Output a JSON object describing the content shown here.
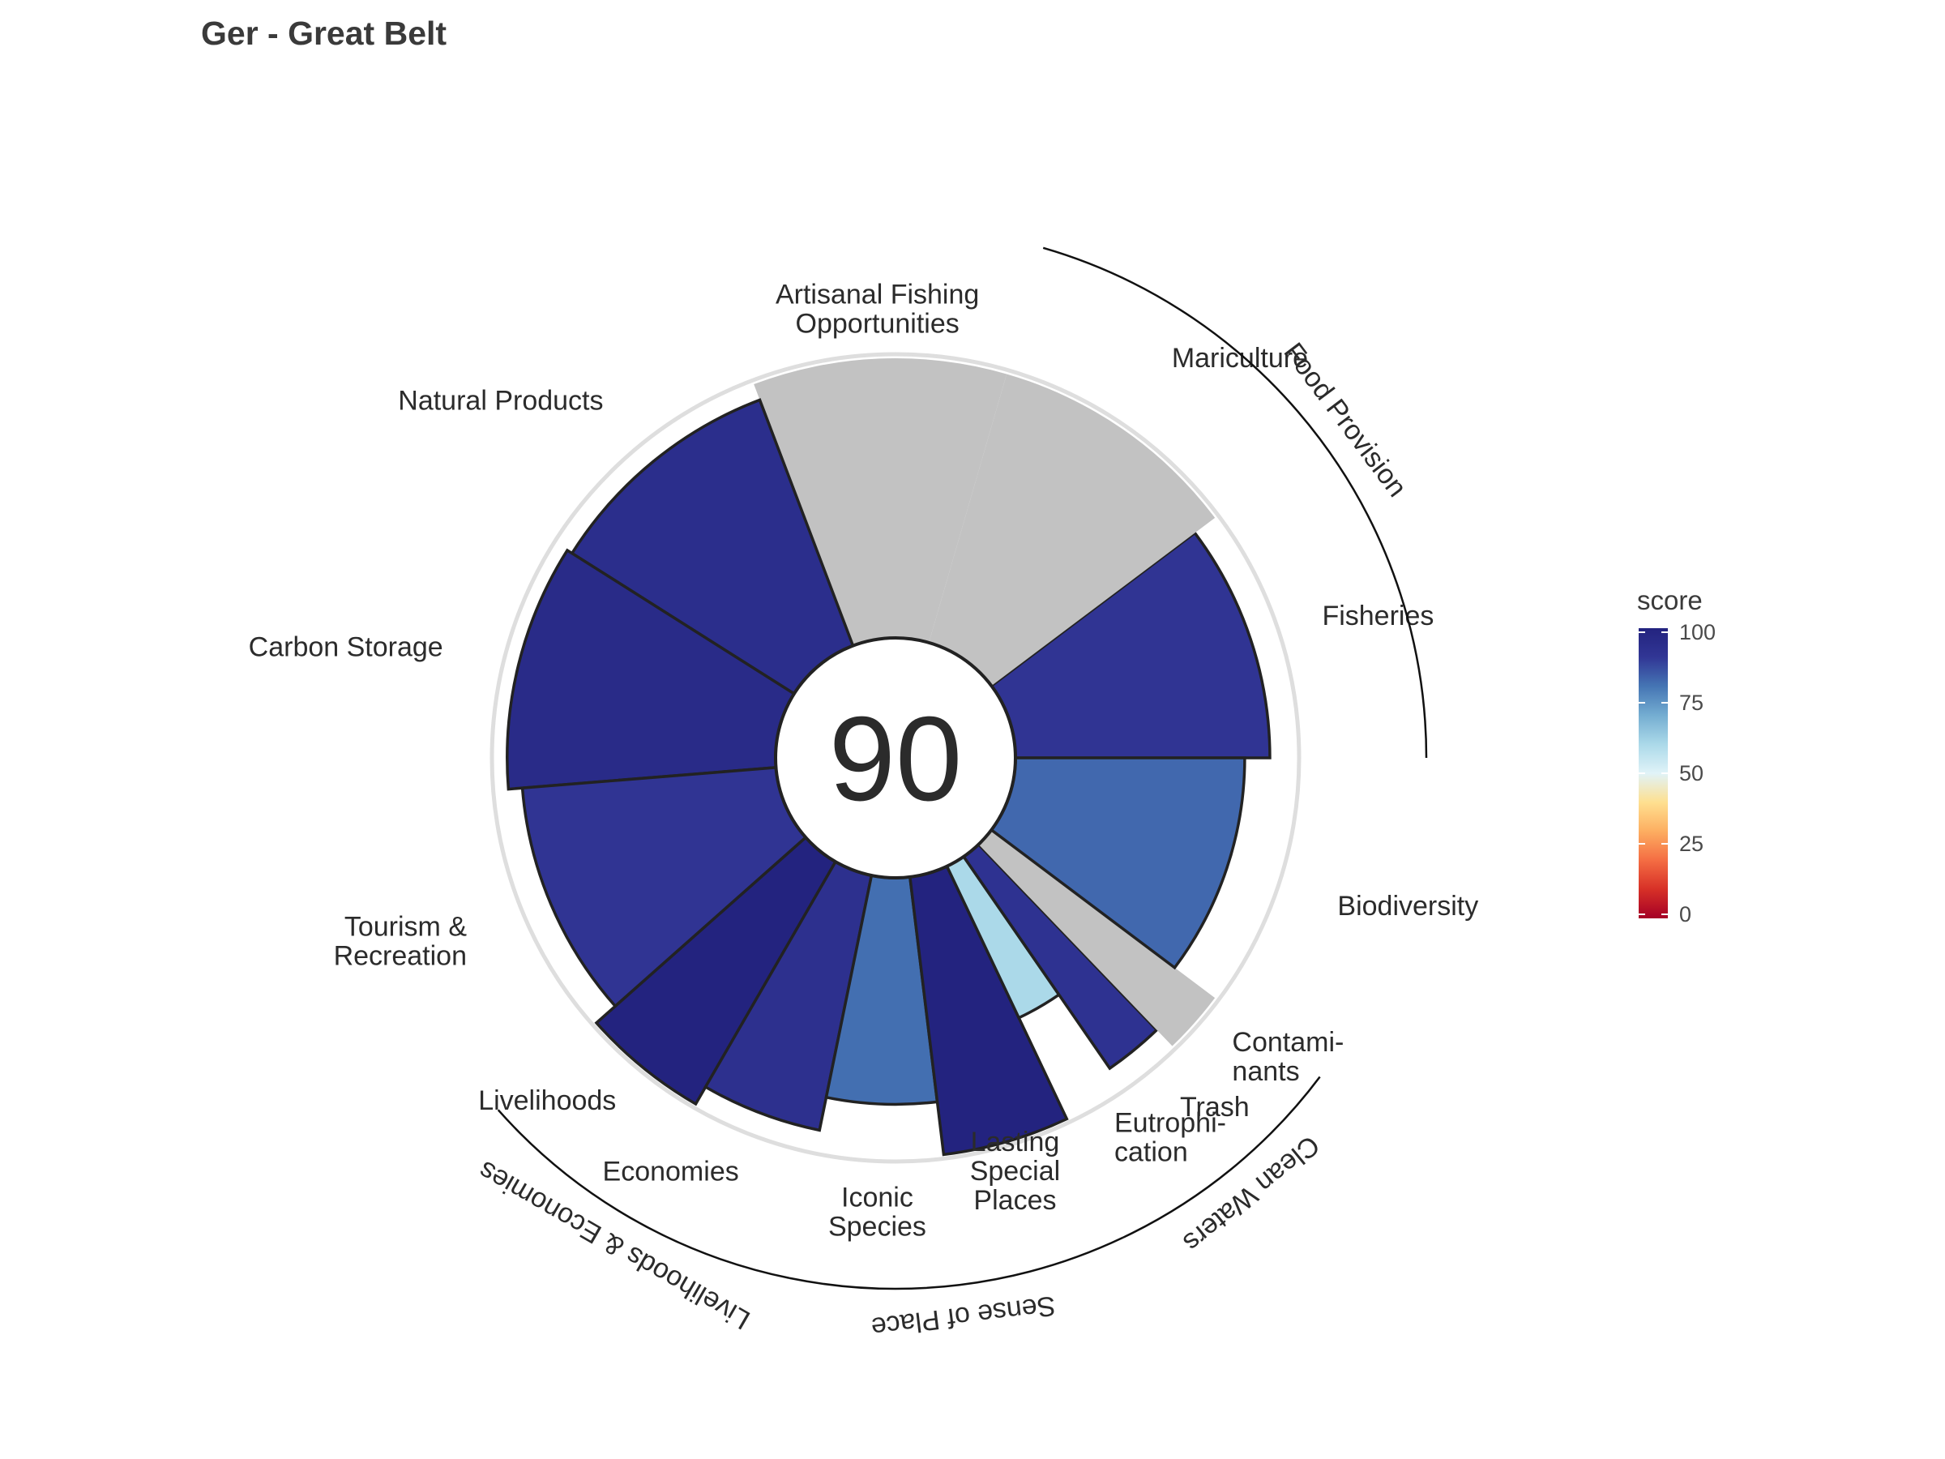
{
  "chart_data": {
    "type": "pie",
    "subtype": "flower-plot",
    "title": "Ger - Great Belt",
    "center_score": "90",
    "ylim": [
      0,
      100
    ],
    "goals": [
      {
        "label_lines": [
          "Fisheries"
        ],
        "score": 91,
        "na": false,
        "weight": 1
      },
      {
        "label_lines": [
          "Mariculture"
        ],
        "score": 100,
        "na": true,
        "weight": 1
      },
      {
        "label_lines": [
          "Artisanal Fishing",
          "Opportunities"
        ],
        "score": 100,
        "na": true,
        "weight": 1
      },
      {
        "label_lines": [
          "Natural Products"
        ],
        "score": 94,
        "na": false,
        "weight": 1
      },
      {
        "label_lines": [
          "Carbon Storage"
        ],
        "score": 96,
        "na": false,
        "weight": 1
      },
      {
        "label_lines": [
          "Tourism &",
          "Recreation"
        ],
        "score": 91,
        "na": false,
        "weight": 1
      },
      {
        "label_lines": [
          "Livelihoods"
        ],
        "score": 100,
        "na": false,
        "weight": 0.5
      },
      {
        "label_lines": [
          "Economies"
        ],
        "score": 93,
        "na": false,
        "weight": 0.5
      },
      {
        "label_lines": [
          "Iconic",
          "Species"
        ],
        "score": 81,
        "na": false,
        "weight": 0.5
      },
      {
        "label_lines": [
          "Lasting",
          "Special",
          "Places"
        ],
        "score": 100,
        "na": false,
        "weight": 0.5
      },
      {
        "label_lines": [
          "Eutrophi-",
          "cation"
        ],
        "score": 60,
        "na": false,
        "weight": 0.25
      },
      {
        "label_lines": [
          "Trash"
        ],
        "score": 92,
        "na": false,
        "weight": 0.25
      },
      {
        "label_lines": [
          "Contami-",
          "nants"
        ],
        "score": 100,
        "na": true,
        "weight": 0.25
      },
      {
        "label_lines": [
          "Biodiversity"
        ],
        "score": 82,
        "na": false,
        "weight": 1
      }
    ],
    "groups": [
      {
        "label": "Food Provision"
      },
      {
        "label": "Livelihoods & Economies"
      },
      {
        "label": "Sense of Place"
      },
      {
        "label": "Clean Waters"
      }
    ],
    "legend": {
      "title": "score",
      "ticks": [
        "0",
        "25",
        "50",
        "75",
        "100"
      ],
      "gradient": [
        "#a50026",
        "#d73027",
        "#f46d43",
        "#fdae61",
        "#fee090",
        "#e0f3f8",
        "#abd9e9",
        "#74add1",
        "#4575b4",
        "#313695",
        "#23237f"
      ]
    },
    "colors": {
      "na": "#c2c2c2",
      "outline": "#222222",
      "ring": "#dedede"
    }
  }
}
